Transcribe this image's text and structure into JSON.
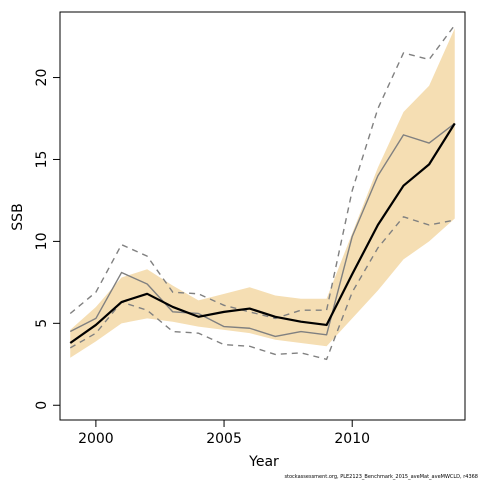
{
  "chart_data": {
    "type": "line",
    "title": "",
    "xlabel": "Year",
    "ylabel": "SSB",
    "xlim": [
      1998.6,
      2014.4
    ],
    "ylim": [
      -0.9,
      24.0
    ],
    "x_ticks": [
      2000,
      2005,
      2010
    ],
    "y_ticks": [
      0,
      5,
      10,
      15,
      20
    ],
    "grid": false,
    "legend": "none",
    "x": [
      1999,
      2000,
      2001,
      2002,
      2003,
      2004,
      2005,
      2006,
      2007,
      2008,
      2009,
      2010,
      2011,
      2012,
      2013,
      2014
    ],
    "band": {
      "lower": [
        2.9,
        3.9,
        5.0,
        5.3,
        5.1,
        4.8,
        4.6,
        4.4,
        4.0,
        3.8,
        3.6,
        5.3,
        7.0,
        8.9,
        10.0,
        11.4
      ],
      "upper": [
        4.6,
        6.0,
        7.8,
        8.3,
        7.3,
        6.4,
        6.8,
        7.2,
        6.7,
        6.5,
        6.5,
        10.5,
        14.5,
        17.9,
        19.5,
        23.0
      ],
      "color": "#f5deb3"
    },
    "series": [
      {
        "style": "solid-black-thick",
        "color": "#000000",
        "values": [
          3.8,
          4.9,
          6.3,
          6.8,
          6.0,
          5.4,
          5.7,
          5.9,
          5.4,
          5.1,
          4.9,
          8.0,
          11.0,
          13.4,
          14.7,
          17.2
        ]
      },
      {
        "style": "solid-gray",
        "color": "#808080",
        "values": [
          4.5,
          5.3,
          8.1,
          7.4,
          5.7,
          5.6,
          4.8,
          4.7,
          4.2,
          4.5,
          4.3,
          10.3,
          14.0,
          16.5,
          16.0,
          17.2
        ]
      },
      {
        "style": "dashed-gray-upper",
        "color": "#808080",
        "values": [
          5.6,
          6.9,
          9.8,
          9.1,
          6.9,
          6.8,
          6.1,
          5.7,
          5.3,
          5.8,
          5.8,
          13.1,
          18.1,
          21.5,
          21.1,
          23.2
        ]
      },
      {
        "style": "dashed-gray-lower",
        "color": "#808080",
        "values": [
          3.5,
          4.4,
          6.3,
          5.8,
          4.5,
          4.4,
          3.7,
          3.6,
          3.1,
          3.2,
          2.8,
          6.9,
          9.6,
          11.5,
          11.0,
          11.3
        ]
      }
    ]
  },
  "credit": "stockassessment.org, PLE2123_Benchmark_2015_aveMat_aveMWCLD, r4368"
}
